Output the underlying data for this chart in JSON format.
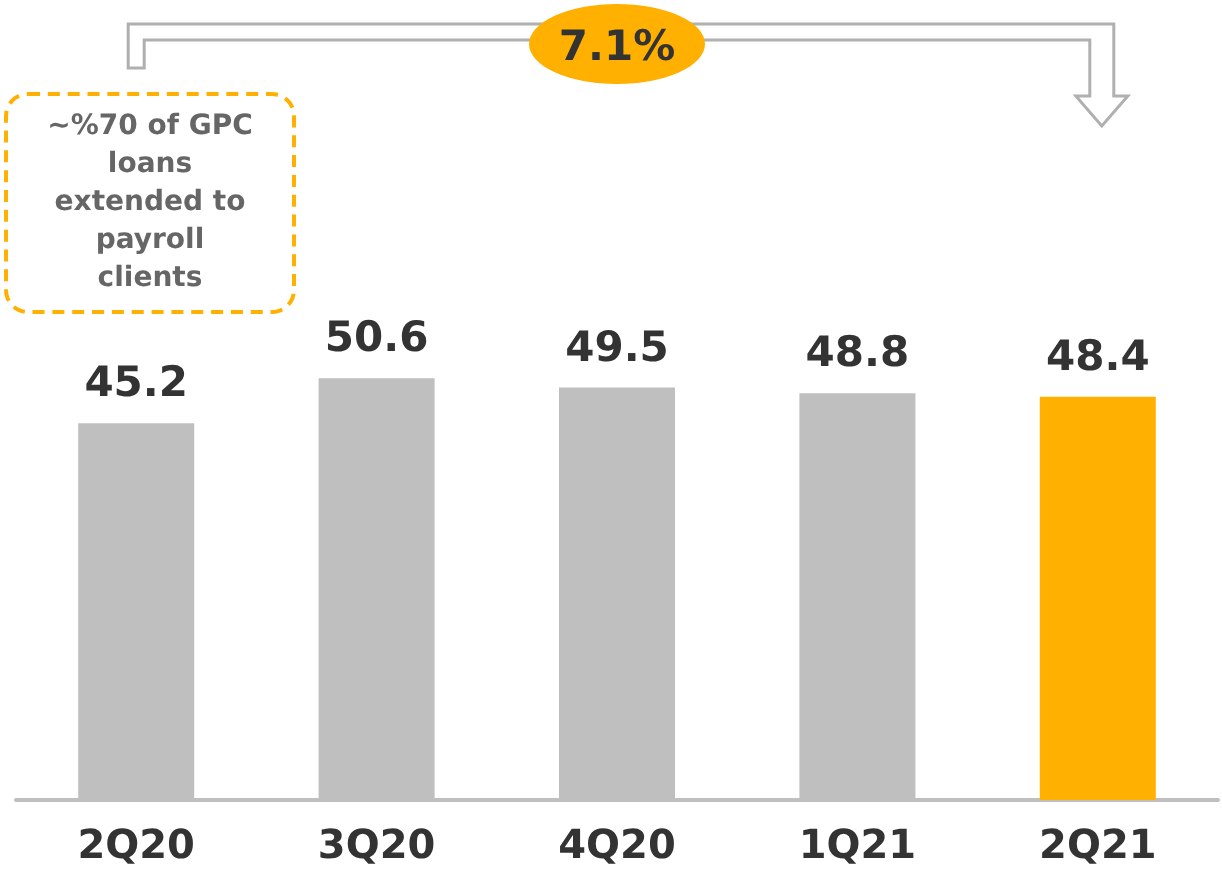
{
  "chart_data": {
    "type": "bar",
    "categories": [
      "2Q20",
      "3Q20",
      "4Q20",
      "1Q21",
      "2Q21"
    ],
    "values": [
      45.2,
      50.6,
      49.5,
      48.8,
      48.4
    ],
    "colors": [
      "#bfbfbf",
      "#bfbfbf",
      "#bfbfbf",
      "#bfbfbf",
      "#ffb000"
    ],
    "data_labels": true,
    "annotations": [
      "7.1%",
      "~%70 of GPC loans extended to payroll clients"
    ]
  }
}
